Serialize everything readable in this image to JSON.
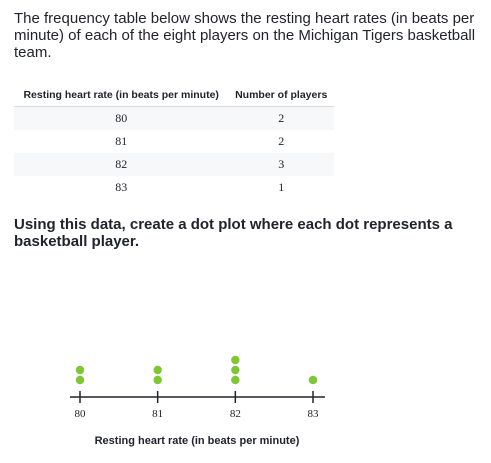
{
  "intro_text": "The frequency table below shows the resting heart rates (in beats per minute) of each of the eight players on the Michigan Tigers basketball team.",
  "table": {
    "headers": [
      "Resting heart rate (in beats per minute)",
      "Number of players"
    ],
    "rows": [
      {
        "rate": "80",
        "count": "2"
      },
      {
        "rate": "81",
        "count": "2"
      },
      {
        "rate": "82",
        "count": "3"
      },
      {
        "rate": "83",
        "count": "1"
      }
    ]
  },
  "prompt_text": "Using this data, create a dot plot where each dot represents a basketball player.",
  "dot_color": "#7dc832",
  "chart_data": {
    "type": "scatter",
    "subtype": "dot-plot",
    "x": [
      80,
      81,
      82,
      83
    ],
    "counts": [
      2,
      2,
      3,
      1
    ],
    "tick_labels": [
      "80",
      "81",
      "82",
      "83"
    ],
    "xlabel": "Resting heart rate (in beats per minute)",
    "xlim": [
      80,
      83
    ]
  }
}
